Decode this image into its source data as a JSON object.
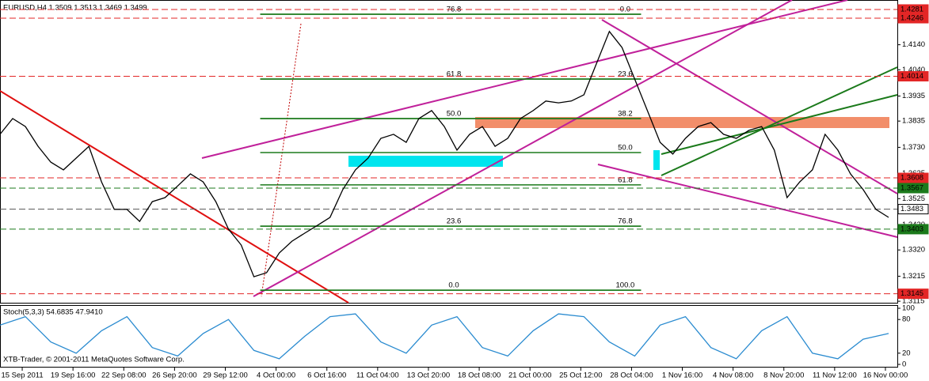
{
  "chart_data": [
    {
      "type": "line",
      "title": "EURUSD,H4  1.3509 1.3513 1.3469 1.3499",
      "color": "#000000",
      "x": [
        0,
        4,
        8,
        12,
        16,
        20,
        24,
        28,
        32,
        36,
        40,
        44,
        48,
        52,
        56,
        60,
        64,
        68,
        72,
        76,
        80,
        84,
        88,
        92,
        96,
        100,
        104,
        108,
        112,
        116,
        120,
        124,
        128,
        132,
        136,
        140,
        144,
        148,
        152,
        156,
        160,
        164,
        168,
        172,
        176,
        180,
        184,
        188,
        192,
        196,
        200,
        204,
        208,
        212,
        216,
        220,
        224,
        228,
        232,
        236,
        240,
        244,
        248,
        252,
        256,
        260,
        264,
        268,
        272,
        276,
        280
      ],
      "values": [
        1.3782,
        1.3845,
        1.3813,
        1.3734,
        1.3671,
        1.364,
        1.3687,
        1.3734,
        1.3592,
        1.3482,
        1.3482,
        1.3434,
        1.3513,
        1.3529,
        1.3576,
        1.3624,
        1.3592,
        1.3513,
        1.3403,
        1.334,
        1.3213,
        1.3229,
        1.3308,
        1.3355,
        1.3387,
        1.3418,
        1.345,
        1.3561,
        1.364,
        1.3687,
        1.3766,
        1.3782,
        1.375,
        1.3845,
        1.3877,
        1.3813,
        1.3719,
        1.3782,
        1.3813,
        1.3734,
        1.3766,
        1.3845,
        1.3877,
        1.3915,
        1.3908,
        1.3915,
        1.394,
        1.4066,
        1.4193,
        1.4129,
        1.4003,
        1.3877,
        1.375,
        1.3703,
        1.3766,
        1.3813,
        1.3829,
        1.3782,
        1.3766,
        1.3798,
        1.3813,
        1.3719,
        1.3529,
        1.3592,
        1.364,
        1.3782,
        1.3719,
        1.3624,
        1.3561,
        1.3482,
        1.345
      ],
      "xlim": [
        0,
        282
      ],
      "xticks": [
        {
          "value": 7,
          "label": "15 Sep 2011"
        },
        {
          "value": 23,
          "label": "19 Sep 16:00"
        },
        {
          "value": 39,
          "label": "22 Sep 08:00"
        },
        {
          "value": 55,
          "label": "26 Sep 20:00"
        },
        {
          "value": 71,
          "label": "29 Sep 12:00"
        },
        {
          "value": 87,
          "label": "4 Oct 00:00"
        },
        {
          "value": 103,
          "label": "6 Oct 16:00"
        },
        {
          "value": 119,
          "label": "11 Oct 04:00"
        },
        {
          "value": 135,
          "label": "13 Oct 20:00"
        },
        {
          "value": 151,
          "label": "18 Oct 08:00"
        },
        {
          "value": 167,
          "label": "21 Oct 00:00"
        },
        {
          "value": 183,
          "label": "25 Oct 12:00"
        },
        {
          "value": 199,
          "label": "28 Oct 04:00"
        },
        {
          "value": 215,
          "label": "1 Nov 16:00"
        },
        {
          "value": 231,
          "label": "4 Nov 08:00"
        },
        {
          "value": 247,
          "label": "8 Nov 20:00"
        },
        {
          "value": 263,
          "label": "11 Nov 12:00"
        },
        {
          "value": 279,
          "label": "16 Nov 00:00"
        }
      ],
      "ylim": [
        1.3109,
        1.4303
      ],
      "yticks": [
        {
          "value": 1.414,
          "label": "1.4140"
        },
        {
          "value": 1.404,
          "label": "1.4040"
        },
        1.3935,
        1.3835,
        {
          "value": 1.373,
          "label": "1.3730"
        },
        1.3625,
        1.3525,
        {
          "value": 1.342,
          "label": "1.3420"
        },
        {
          "value": 1.332,
          "label": "1.3320"
        },
        1.3215,
        1.3115
      ],
      "levels": [
        {
          "value": 1.4281,
          "color": "#e32626"
        },
        {
          "value": 1.4246,
          "color": "#e32626"
        },
        {
          "value": 1.4014,
          "color": "#e32626"
        },
        {
          "value": 1.3608,
          "color": "#e32626"
        },
        {
          "value": 1.3567,
          "color": "#1b7a1b"
        },
        {
          "value": 1.3483,
          "color": "#ffffff"
        },
        {
          "value": 1.3403,
          "color": "#1b7a1b"
        },
        {
          "value": 1.3145,
          "color": "#e32626"
        }
      ],
      "fib_color": "#1b7a1b",
      "fib_range": [
        82,
        202
      ],
      "fib_levels": [
        {
          "label": "0.0",
          "price": 1.4262,
          "x": 197
        },
        {
          "label": "76.8",
          "price": 1.4262,
          "x": 143
        },
        {
          "label": "61.8",
          "price": 1.4003,
          "x": 143
        },
        {
          "label": "23.6",
          "price": 1.4003,
          "x": 197
        },
        {
          "label": "50.0",
          "price": 1.3845,
          "x": 143
        },
        {
          "label": "38.2",
          "price": 1.3845,
          "x": 197
        },
        {
          "label": "50.0",
          "price": 1.3709,
          "x": 197
        },
        {
          "label": "61.8",
          "price": 1.358,
          "x": 197
        },
        {
          "label": "23.6",
          "price": 1.3415,
          "x": 143
        },
        {
          "label": "76.8",
          "price": 1.3415,
          "x": 197
        },
        {
          "label": "0.0",
          "price": 1.3159,
          "x": 143
        },
        {
          "label": "100.0",
          "price": 1.3159,
          "x": 197
        }
      ]
    },
    {
      "type": "line",
      "title": "Stoch(5,3,3) 54.6835 47.9410",
      "color": "#2a8bd0",
      "annotation": "XTB-Trader, © 2001-2011 MetaQuotes Software Corp.",
      "x": [
        0,
        8,
        16,
        24,
        32,
        40,
        48,
        56,
        64,
        72,
        80,
        88,
        96,
        104,
        112,
        120,
        128,
        136,
        144,
        152,
        160,
        168,
        176,
        184,
        192,
        200,
        208,
        216,
        224,
        232,
        240,
        248,
        256,
        264,
        272,
        280
      ],
      "values": [
        70,
        85,
        40,
        20,
        60,
        85,
        30,
        15,
        55,
        80,
        25,
        10,
        50,
        85,
        90,
        40,
        20,
        70,
        85,
        30,
        15,
        60,
        90,
        85,
        40,
        15,
        70,
        85,
        30,
        10,
        60,
        85,
        20,
        10,
        45,
        55
      ],
      "xlim": [
        0,
        282
      ],
      "ylim": [
        0,
        100
      ],
      "yticks": [
        0,
        20,
        80,
        100
      ]
    }
  ]
}
